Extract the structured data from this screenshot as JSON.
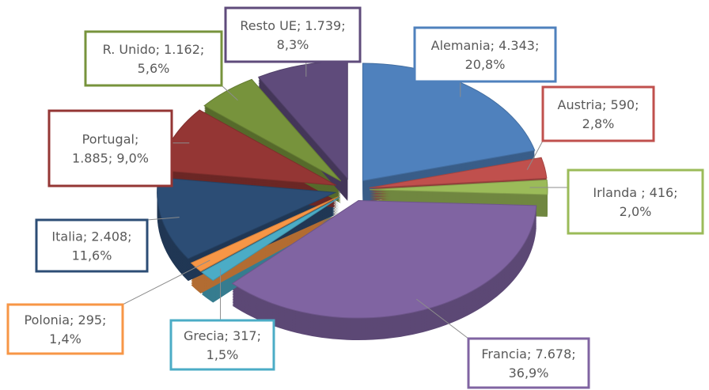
{
  "chart_data": {
    "type": "pie3d",
    "categories": [
      "Alemania",
      "Austria",
      "Irlanda",
      "Francia",
      "Grecia",
      "Polonia",
      "Italia",
      "Portugal",
      "R. Unido",
      "Resto UE"
    ],
    "values": [
      4343,
      590,
      416,
      7678,
      317,
      295,
      2408,
      1885,
      1162,
      1739
    ],
    "percentages": [
      20.8,
      2.8,
      2.0,
      36.9,
      1.5,
      1.4,
      11.6,
      9.0,
      5.6,
      8.3
    ],
    "labels": [
      [
        "Alemania; 4.343;",
        "20,8%"
      ],
      [
        "Austria; 590;",
        "2,8%"
      ],
      [
        "Irlanda ; 416;",
        "2,0%"
      ],
      [
        "Francia; 7.678;",
        "36,9%"
      ],
      [
        "Grecia; 317;",
        "1,5%"
      ],
      [
        "Polonia; 295;",
        "1,4%"
      ],
      [
        "Italia; 2.408;",
        "11,6%"
      ],
      [
        "Portugal;",
        "1.885; 9,0%"
      ],
      [
        "R. Unido; 1.162;",
        "5,6%"
      ],
      [
        "Resto UE; 1.739;",
        "8,3%"
      ]
    ],
    "colors": [
      "#4f81bd",
      "#c0504d",
      "#9bbb59",
      "#8064a2",
      "#4bacc6",
      "#f79646",
      "#2c4d75",
      "#943634",
      "#77933c",
      "#5f4b7b"
    ]
  }
}
